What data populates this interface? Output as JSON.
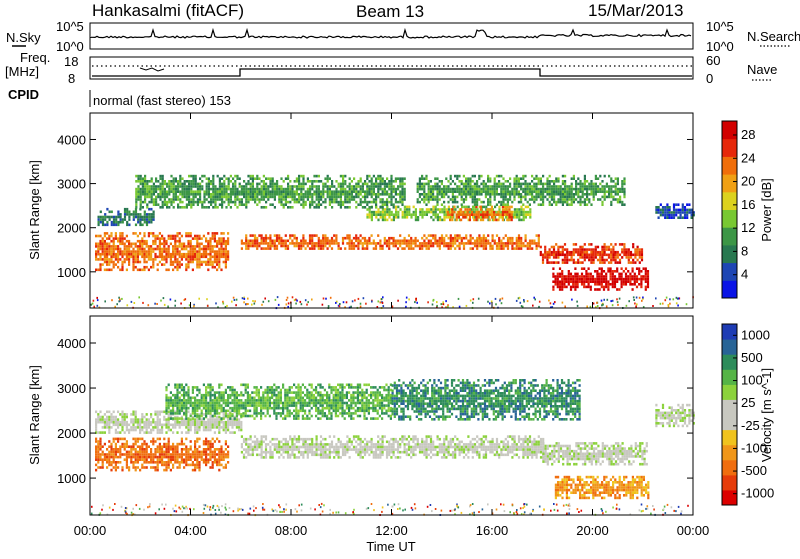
{
  "header": {
    "station": "Hankasalmi (fitACF)",
    "beam": "Beam 13",
    "date": "15/Mar/2013"
  },
  "small_panels": {
    "nsky_label": "N.Sky",
    "nsky_top": "10^5",
    "nsky_bottom": "10^0",
    "nsearch_label": "N.Search",
    "nsearch_top": "10^5",
    "nsearch_bottom": "10^0",
    "freq_label_1": "Freq.",
    "freq_label_2": "[MHz]",
    "freq_top": "18",
    "freq_bottom": "8",
    "nave_label": "Nave",
    "nave_top": "60",
    "nave_bottom": "0",
    "cpid_label": "CPID",
    "cpid_text": "normal (fast stereo) 153"
  },
  "chart_data": [
    {
      "type": "heatmap",
      "panel": "power",
      "ylabel": "Slant Range [km]",
      "colorbar_label": "Power [dB]",
      "x_ticks": [
        "00:00",
        "04:00",
        "08:00",
        "12:00",
        "16:00",
        "20:00",
        "00:00"
      ],
      "y_ticks": [
        1000,
        2000,
        3000,
        4000
      ],
      "ylim": [
        180,
        4600
      ],
      "colorbar_ticks": [
        "4",
        "8",
        "12",
        "16",
        "20",
        "24",
        "28"
      ],
      "colors": [
        "#0a14e6",
        "#1e46b4",
        "#287850",
        "#3c9646",
        "#78c832",
        "#dcd21e",
        "#f0a014",
        "#f06e0a",
        "#e6280a",
        "#d20000"
      ],
      "echo_bands": [
        {
          "t": [
            0.2,
            5.5
          ],
          "r": [
            1050,
            1900
          ],
          "level": 7
        },
        {
          "t": [
            6.0,
            17.9
          ],
          "r": [
            1500,
            1850
          ],
          "level": 7
        },
        {
          "t": [
            17.9,
            22.0
          ],
          "r": [
            1200,
            1650
          ],
          "level": 8
        },
        {
          "t": [
            18.4,
            22.2
          ],
          "r": [
            600,
            1100
          ],
          "level": 9
        },
        {
          "t": [
            0.3,
            2.5
          ],
          "r": [
            2050,
            2450
          ],
          "level": 2
        },
        {
          "t": [
            11.0,
            17.5
          ],
          "r": [
            2200,
            2500
          ],
          "level": 4
        },
        {
          "t": [
            14.2,
            16.8
          ],
          "r": [
            2150,
            2500
          ],
          "level": 7
        },
        {
          "t": [
            1.8,
            12.5
          ],
          "r": [
            2450,
            3200
          ],
          "level": 3
        },
        {
          "t": [
            13.0,
            21.3
          ],
          "r": [
            2550,
            3200
          ],
          "level": 3
        },
        {
          "t": [
            22.5,
            24.0
          ],
          "r": [
            2200,
            2550
          ],
          "level": 1
        }
      ]
    },
    {
      "type": "heatmap",
      "panel": "velocity",
      "ylabel": "Slant Range [km]",
      "xlabel": "Time UT",
      "colorbar_label": "Velocity [m s^-1]",
      "x_ticks": [
        "00:00",
        "04:00",
        "08:00",
        "12:00",
        "16:00",
        "20:00",
        "00:00"
      ],
      "y_ticks": [
        1000,
        2000,
        3000,
        4000
      ],
      "ylim": [
        180,
        4600
      ],
      "colorbar_ticks": [
        "1000",
        "500",
        "100",
        "25",
        "-25",
        "-100",
        "-500",
        "-1000"
      ],
      "colors": [
        "#1e3cb4",
        "#286496",
        "#2d8c5a",
        "#55b446",
        "#8cd23c",
        "#c8c8c0",
        "#c8c8c0",
        "#f0c31e",
        "#f09619",
        "#f06e0f",
        "#e63c0a",
        "#dc0000"
      ],
      "echo_bands": [
        {
          "t": [
            0.2,
            5.5
          ],
          "r": [
            1200,
            1900
          ],
          "level": 9
        },
        {
          "t": [
            0.2,
            6.0
          ],
          "r": [
            2000,
            2500
          ],
          "level": 5
        },
        {
          "t": [
            6.0,
            18.0
          ],
          "r": [
            1450,
            1950
          ],
          "level": 5
        },
        {
          "t": [
            18.0,
            22.2
          ],
          "r": [
            1300,
            1800
          ],
          "level": 5
        },
        {
          "t": [
            18.5,
            22.2
          ],
          "r": [
            550,
            1050
          ],
          "level": 8
        },
        {
          "t": [
            3.0,
            12.0
          ],
          "r": [
            2300,
            3100
          ],
          "level": 3
        },
        {
          "t": [
            12.0,
            19.5
          ],
          "r": [
            2300,
            3200
          ],
          "level": 2
        },
        {
          "t": [
            22.5,
            24.0
          ],
          "r": [
            2150,
            2650
          ],
          "level": 5
        }
      ]
    }
  ]
}
